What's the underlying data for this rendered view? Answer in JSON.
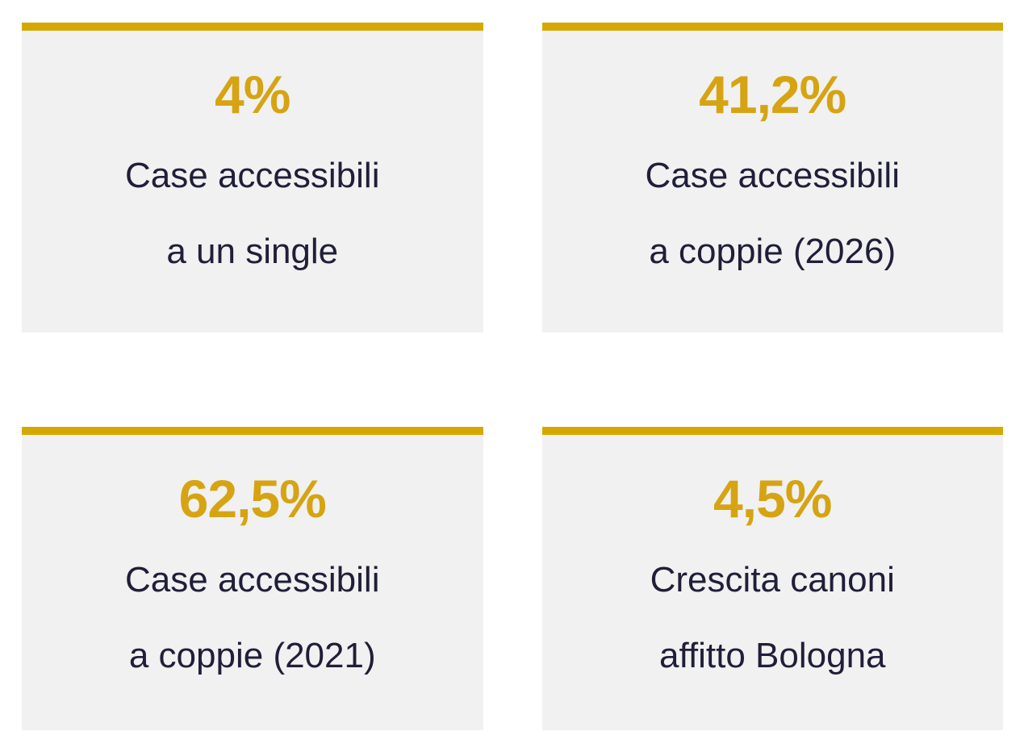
{
  "page": {
    "background_color": "#FFFFFF"
  },
  "theme": {
    "accent_gold_text": "#D6A413",
    "accent_gold_bar": "#D5A800",
    "label_navy": "#201E38",
    "card_background": "#F1F1F1"
  },
  "cards": [
    {
      "value": "4%",
      "line1": "Case accessibili",
      "line2": "a un single"
    },
    {
      "value": "41,2%",
      "line1": "Case accessibili",
      "line2": "a coppie (2026)"
    },
    {
      "value": "62,5%",
      "line1": "Case accessibili",
      "line2": "a coppie (2021)"
    },
    {
      "value": "4,5%",
      "line1": "Crescita canoni",
      "line2": "affitto Bologna"
    }
  ],
  "chart_data": {
    "type": "table",
    "items": [
      {
        "value": 4,
        "unit": "%",
        "label": "Case accessibili a un single"
      },
      {
        "value": 41.2,
        "unit": "%",
        "label": "Case accessibili a coppie (2026)"
      },
      {
        "value": 62.5,
        "unit": "%",
        "label": "Case accessibili a coppie (2021)"
      },
      {
        "value": 4.5,
        "unit": "%",
        "label": "Crescita canoni affitto Bologna"
      }
    ]
  }
}
